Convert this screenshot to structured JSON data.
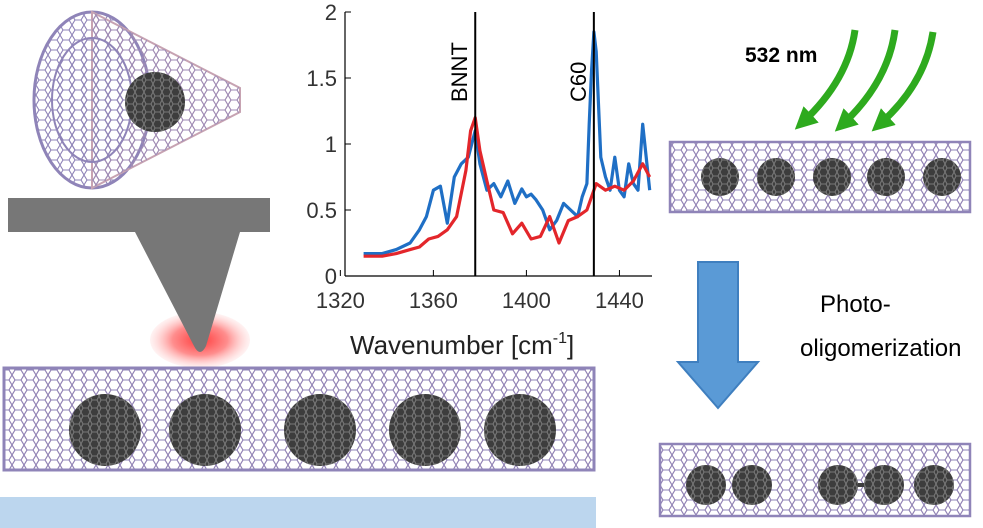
{
  "chart_data": {
    "type": "line",
    "xlabel": "Wavenumber [cm",
    "xlabel_superscript": "-1",
    "xlabel_suffix": "]",
    "xlim": [
      1322,
      1454
    ],
    "ylim": [
      0,
      2
    ],
    "x_ticks": [
      1320,
      1360,
      1400,
      1440
    ],
    "y_ticks": [
      0,
      0.5,
      1,
      1.5,
      2
    ],
    "y_tick_labels": [
      "0",
      "0.5",
      "1",
      "1.5",
      "2"
    ],
    "markers": [
      {
        "label": "BNNT",
        "x": 1378
      },
      {
        "label": "C60",
        "x": 1429
      }
    ],
    "series": [
      {
        "color": "#1f6fc5",
        "x": [
          1330,
          1338,
          1344,
          1350,
          1354,
          1357,
          1360,
          1363,
          1366,
          1369,
          1372,
          1375,
          1378,
          1380,
          1383,
          1386,
          1389,
          1392,
          1395,
          1398,
          1400,
          1402,
          1404,
          1407,
          1410,
          1413,
          1416,
          1419,
          1422,
          1424,
          1426,
          1427,
          1428,
          1429,
          1430,
          1432,
          1434,
          1436,
          1438,
          1440,
          1442,
          1444,
          1446,
          1448,
          1450,
          1453
        ],
        "values": [
          0.17,
          0.17,
          0.2,
          0.25,
          0.35,
          0.45,
          0.65,
          0.68,
          0.4,
          0.75,
          0.85,
          0.9,
          1.1,
          0.85,
          0.65,
          0.7,
          0.6,
          0.72,
          0.55,
          0.66,
          0.6,
          0.62,
          0.58,
          0.5,
          0.35,
          0.42,
          0.55,
          0.5,
          0.45,
          0.6,
          0.7,
          1.15,
          1.55,
          1.85,
          1.7,
          0.9,
          0.75,
          0.65,
          0.9,
          0.65,
          0.6,
          0.85,
          0.7,
          0.65,
          1.15,
          0.65
        ]
      },
      {
        "color": "#e3262b",
        "x": [
          1330,
          1338,
          1344,
          1350,
          1354,
          1358,
          1362,
          1366,
          1370,
          1374,
          1376,
          1378,
          1380,
          1383,
          1386,
          1390,
          1394,
          1398,
          1402,
          1406,
          1410,
          1414,
          1418,
          1422,
          1426,
          1430,
          1434,
          1438,
          1442,
          1446,
          1450,
          1453
        ],
        "values": [
          0.15,
          0.15,
          0.17,
          0.2,
          0.22,
          0.28,
          0.3,
          0.35,
          0.45,
          0.8,
          1.1,
          1.2,
          0.95,
          0.72,
          0.5,
          0.48,
          0.32,
          0.4,
          0.28,
          0.3,
          0.45,
          0.25,
          0.42,
          0.45,
          0.5,
          0.7,
          0.65,
          0.68,
          0.65,
          0.72,
          0.85,
          0.75
        ]
      }
    ]
  },
  "labels": {
    "wavelength": "532 nm",
    "process_line1": "Photo-",
    "process_line2": "oligomerization"
  },
  "colors": {
    "laser_arrow": "#2eaa1e",
    "process_arrow": "#5a9ad6",
    "substrate": "#bcd6ee",
    "tip": "#777777",
    "tube_mesh": "#8f84b8",
    "fullerene": "#3a3a3a"
  }
}
